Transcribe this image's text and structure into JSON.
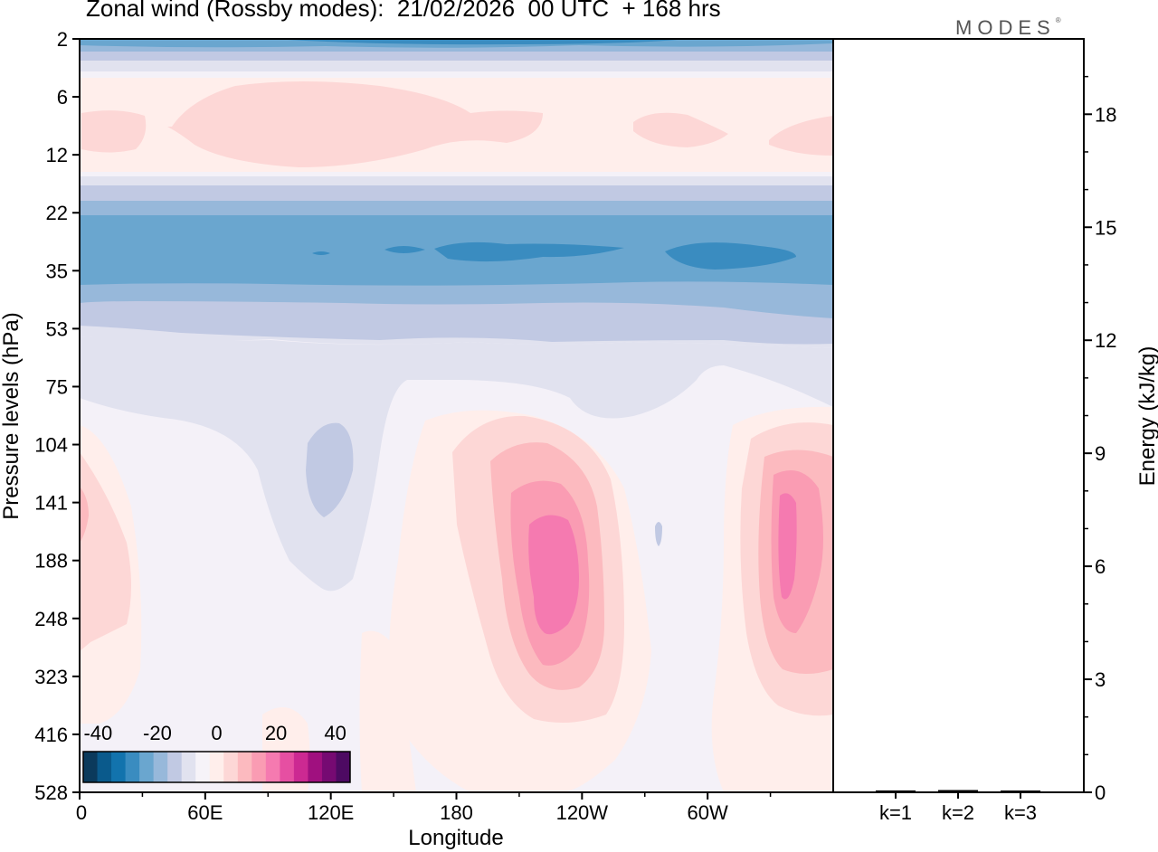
{
  "title": "Zonal wind (Rossby modes):  21/02/2026  00 UTC  + 168 hrs",
  "logo_text": "MODES",
  "logo_mark": "®",
  "chart_data": [
    {
      "type": "heatmap",
      "title": "Zonal wind (Rossby modes):  21/02/2026  00 UTC  + 168 hrs",
      "xlabel": "Longitude",
      "ylabel": "Pressure levels (hPa)",
      "x_ticks": [
        "0",
        "60E",
        "120E",
        "180",
        "120W",
        "60W"
      ],
      "y_ticks": [
        "2",
        "6",
        "12",
        "22",
        "35",
        "53",
        "75",
        "104",
        "141",
        "188",
        "248",
        "323",
        "416",
        "528"
      ],
      "colorbar": {
        "tick_labels": [
          "-40",
          "-20",
          "0",
          "20",
          "40"
        ],
        "range": [
          -45,
          45
        ],
        "step": 5,
        "colors": [
          "#0b3a5c",
          "#0a5a8c",
          "#1273ad",
          "#3a8cc0",
          "#6aa6cf",
          "#97b8da",
          "#c1c9e3",
          "#e1e2ef",
          "#f6f3f8",
          "#ffeeeb",
          "#fdd7d6",
          "#fcbabf",
          "#fa9cb3",
          "#f57ab0",
          "#e64fa2",
          "#cc2992",
          "#a0107f",
          "#760a72",
          "#4d0a62"
        ]
      }
    },
    {
      "type": "bar",
      "ylabel": "Energy (kJ/kg)",
      "categories": [
        "k=1",
        "k=2",
        "k=3"
      ],
      "values": [
        0.05,
        0.06,
        0.02
      ],
      "ylim": [
        0,
        20
      ],
      "y_ticks": [
        "0",
        "3",
        "6",
        "9",
        "12",
        "15",
        "18"
      ]
    }
  ]
}
